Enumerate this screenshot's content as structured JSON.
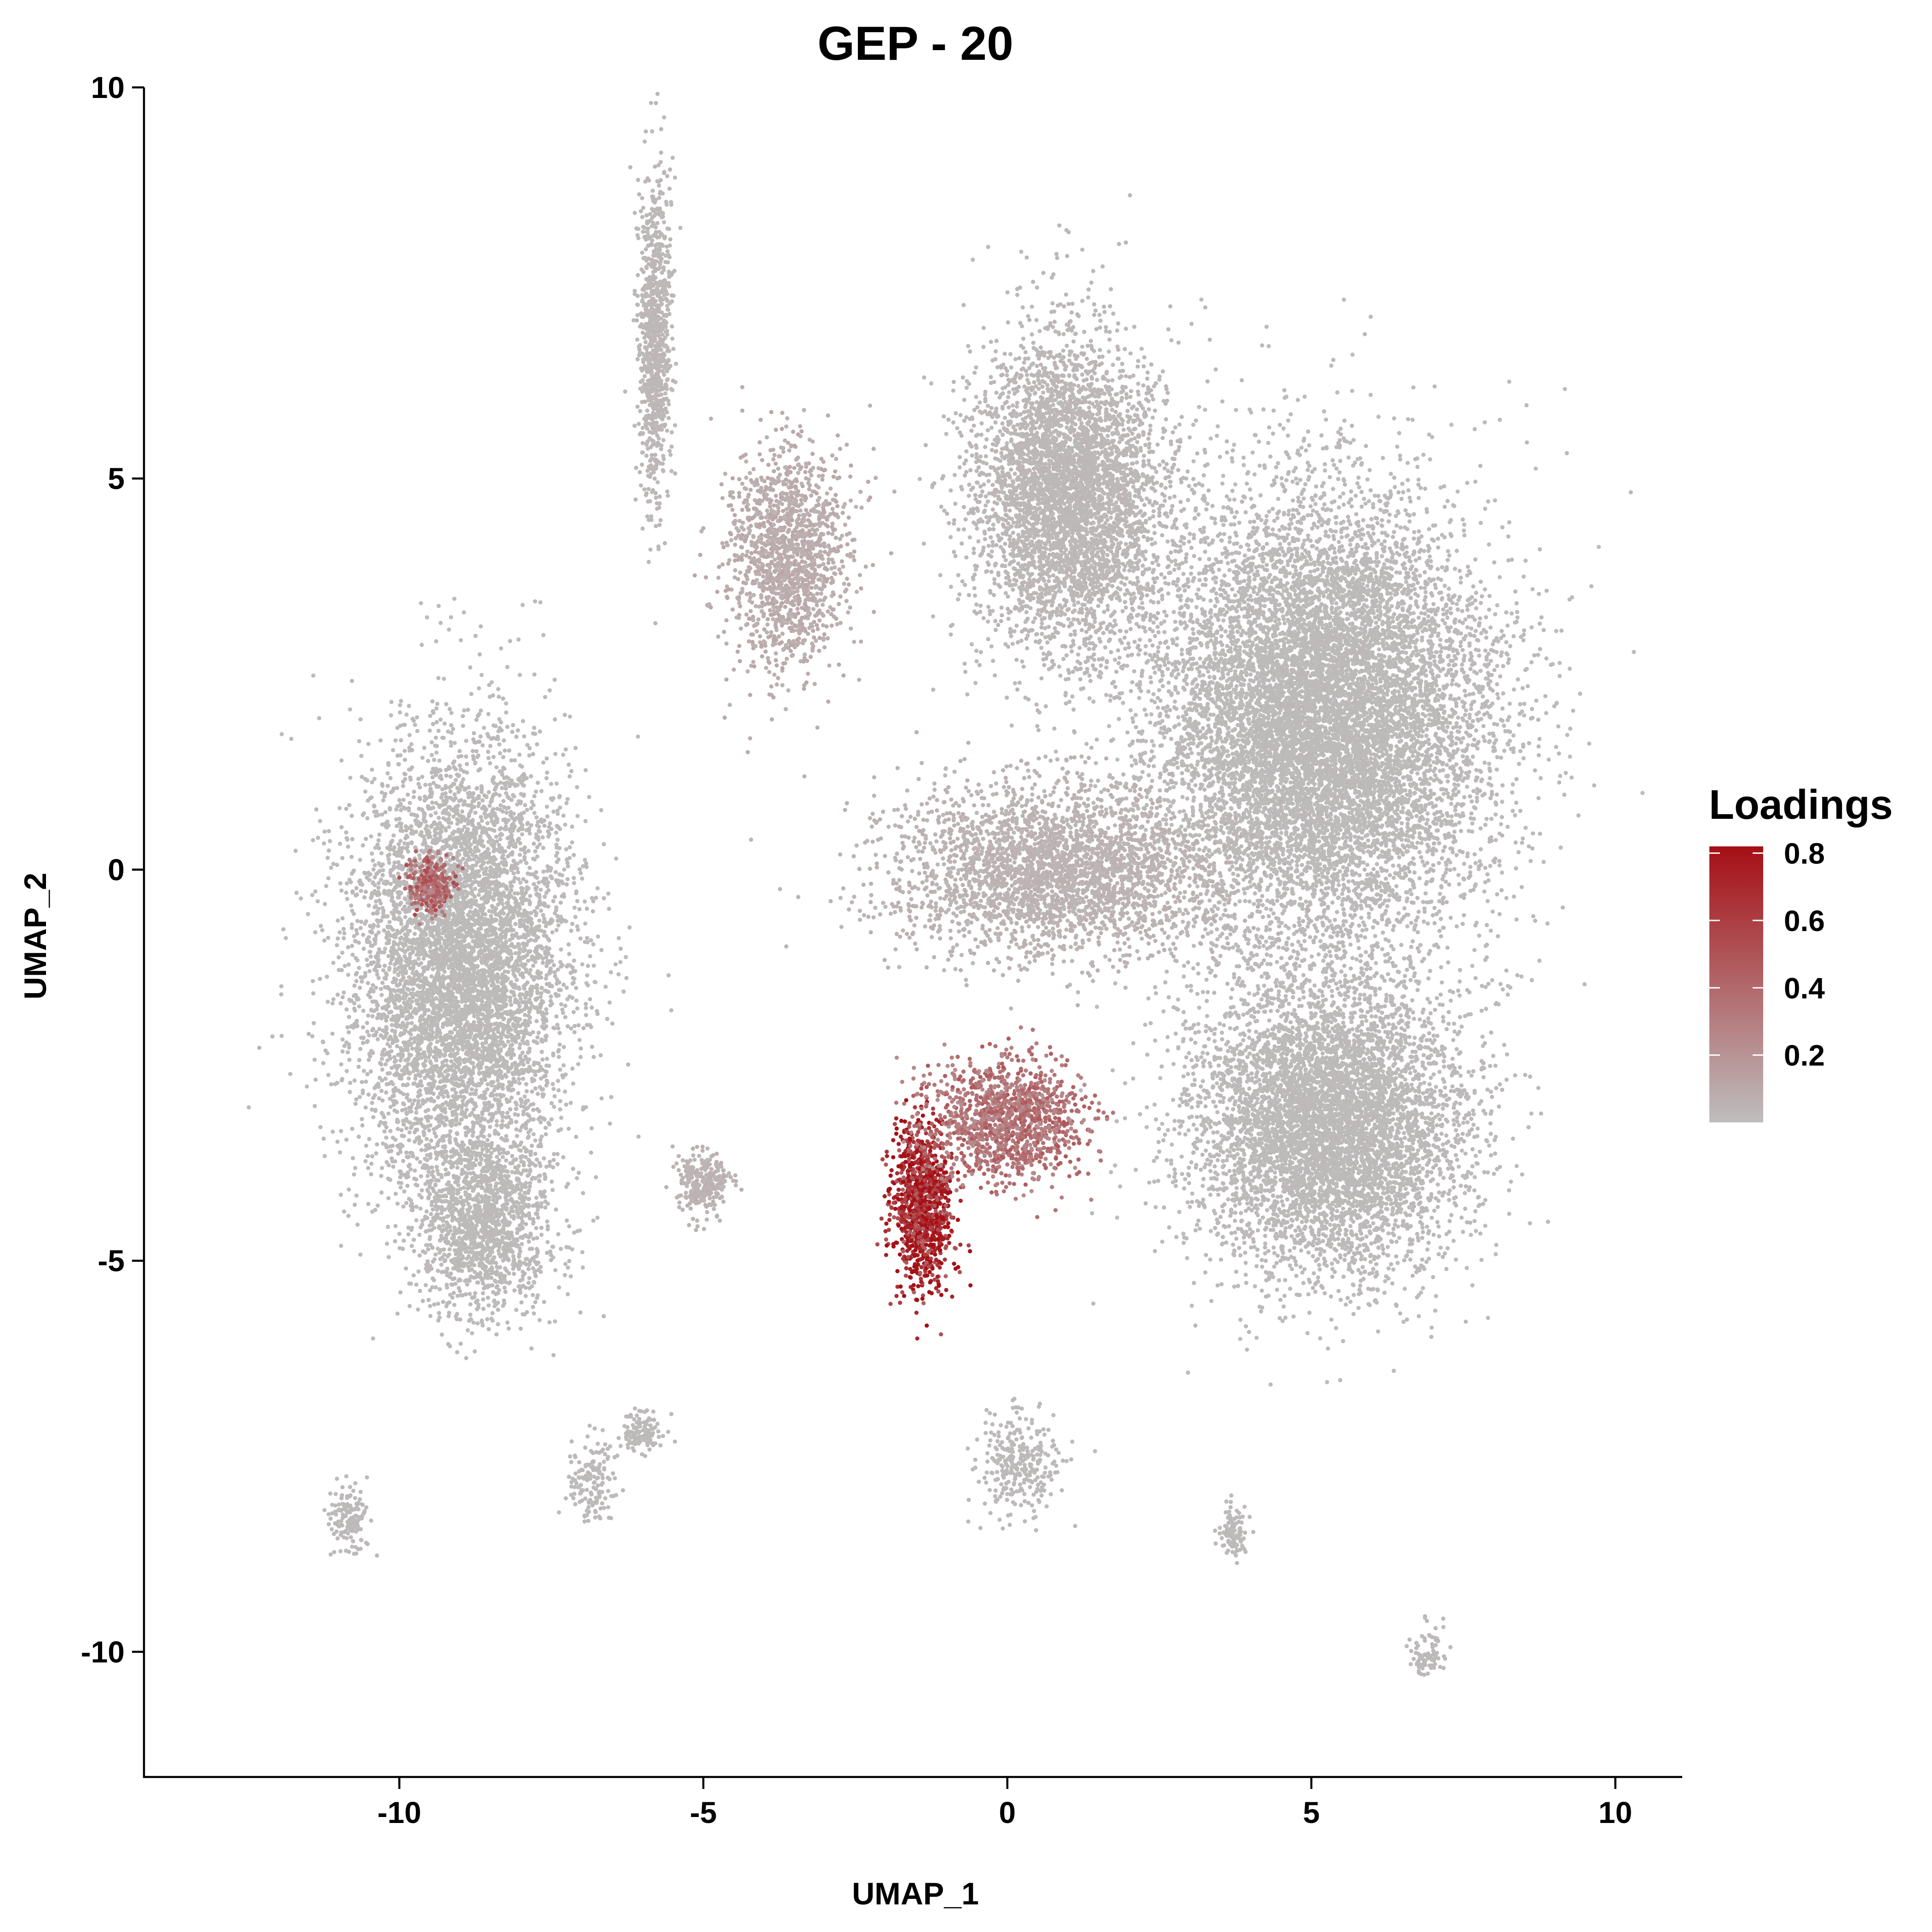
{
  "chart_data": {
    "type": "scatter",
    "title": "GEP - 20",
    "xlabel": "UMAP_1",
    "ylabel": "UMAP_2",
    "xlim": [
      -14.2,
      11.1
    ],
    "ylim": [
      -11.6,
      10.0
    ],
    "xticks": [
      -10,
      -5,
      0,
      5,
      10
    ],
    "yticks": [
      10,
      5,
      0,
      -5,
      -10
    ],
    "xtick_labels": [
      "-10",
      "-5",
      "0",
      "5",
      "10"
    ],
    "ytick_labels": [
      "10",
      "5",
      "0",
      "-5",
      "-10"
    ],
    "grid": false,
    "legend": {
      "title": "Loadings",
      "placement": "right",
      "labels": [
        "0.8",
        "0.6",
        "0.4",
        "0.2"
      ],
      "values": [
        0.8,
        0.6,
        0.4,
        0.2
      ],
      "range": [
        0.0,
        0.82
      ]
    },
    "colors": {
      "low": "#bebebe",
      "high": "#a50f15"
    },
    "clusters": [
      {
        "name": "left-large-lobe",
        "center": [
          -9.0,
          -1.2
        ],
        "spread": [
          1.6,
          2.6
        ],
        "n": 6500,
        "loading": 0.02
      },
      {
        "name": "left-lobe-bottom",
        "center": [
          -8.6,
          -4.5
        ],
        "spread": [
          1.0,
          1.1
        ],
        "n": 1500,
        "loading": 0.02
      },
      {
        "name": "left-hotspot",
        "center": [
          -9.5,
          -0.2
        ],
        "spread": [
          0.35,
          0.35
        ],
        "n": 260,
        "loading": 0.4
      },
      {
        "name": "top-strand",
        "center": [
          -5.8,
          6.8
        ],
        "spread": [
          0.25,
          1.9
        ],
        "n": 900,
        "loading": 0.03
      },
      {
        "name": "upper-middle-branch",
        "center": [
          -3.6,
          4.0
        ],
        "spread": [
          0.9,
          1.3
        ],
        "n": 1500,
        "loading": 0.08
      },
      {
        "name": "right-upper-lobe",
        "center": [
          1.0,
          4.8
        ],
        "spread": [
          1.4,
          1.8
        ],
        "n": 4500,
        "loading": 0.03
      },
      {
        "name": "right-main-mass",
        "center": [
          5.2,
          1.9
        ],
        "spread": [
          2.5,
          2.6
        ],
        "n": 11000,
        "loading": 0.02
      },
      {
        "name": "right-lower-lobe",
        "center": [
          5.3,
          -3.3
        ],
        "spread": [
          2.0,
          1.7
        ],
        "n": 6000,
        "loading": 0.02
      },
      {
        "name": "center-band",
        "center": [
          0.8,
          0.0
        ],
        "spread": [
          2.4,
          1.0
        ],
        "n": 3000,
        "loading": 0.05
      },
      {
        "name": "hotspot-tail",
        "center": [
          -1.4,
          -4.3
        ],
        "spread": [
          0.45,
          1.0
        ],
        "n": 1100,
        "loading": 0.72
      },
      {
        "name": "hotspot-fan",
        "center": [
          0.0,
          -3.2
        ],
        "spread": [
          1.2,
          0.7
        ],
        "n": 1300,
        "loading": 0.35
      },
      {
        "name": "small-cluster",
        "center": [
          -5.0,
          -4.0
        ],
        "spread": [
          0.35,
          0.35
        ],
        "n": 300,
        "loading": 0.05
      },
      {
        "name": "bottom-fragment-1",
        "center": [
          -6.0,
          -7.2
        ],
        "spread": [
          0.3,
          0.25
        ],
        "n": 120,
        "loading": 0.02
      },
      {
        "name": "bottom-fragment-2",
        "center": [
          -6.8,
          -7.8
        ],
        "spread": [
          0.35,
          0.5
        ],
        "n": 150,
        "loading": 0.02
      },
      {
        "name": "bottom-fragment-3",
        "center": [
          0.2,
          -7.6
        ],
        "spread": [
          0.6,
          0.55
        ],
        "n": 300,
        "loading": 0.02
      },
      {
        "name": "bottom-fragment-4",
        "center": [
          -10.8,
          -8.3
        ],
        "spread": [
          0.3,
          0.35
        ],
        "n": 150,
        "loading": 0.02
      },
      {
        "name": "bottom-fragment-5",
        "center": [
          3.7,
          -8.5
        ],
        "spread": [
          0.2,
          0.3
        ],
        "n": 100,
        "loading": 0.02
      },
      {
        "name": "bottom-fragment-6",
        "center": [
          6.9,
          -10.0
        ],
        "spread": [
          0.3,
          0.3
        ],
        "n": 80,
        "loading": 0.02
      }
    ]
  }
}
